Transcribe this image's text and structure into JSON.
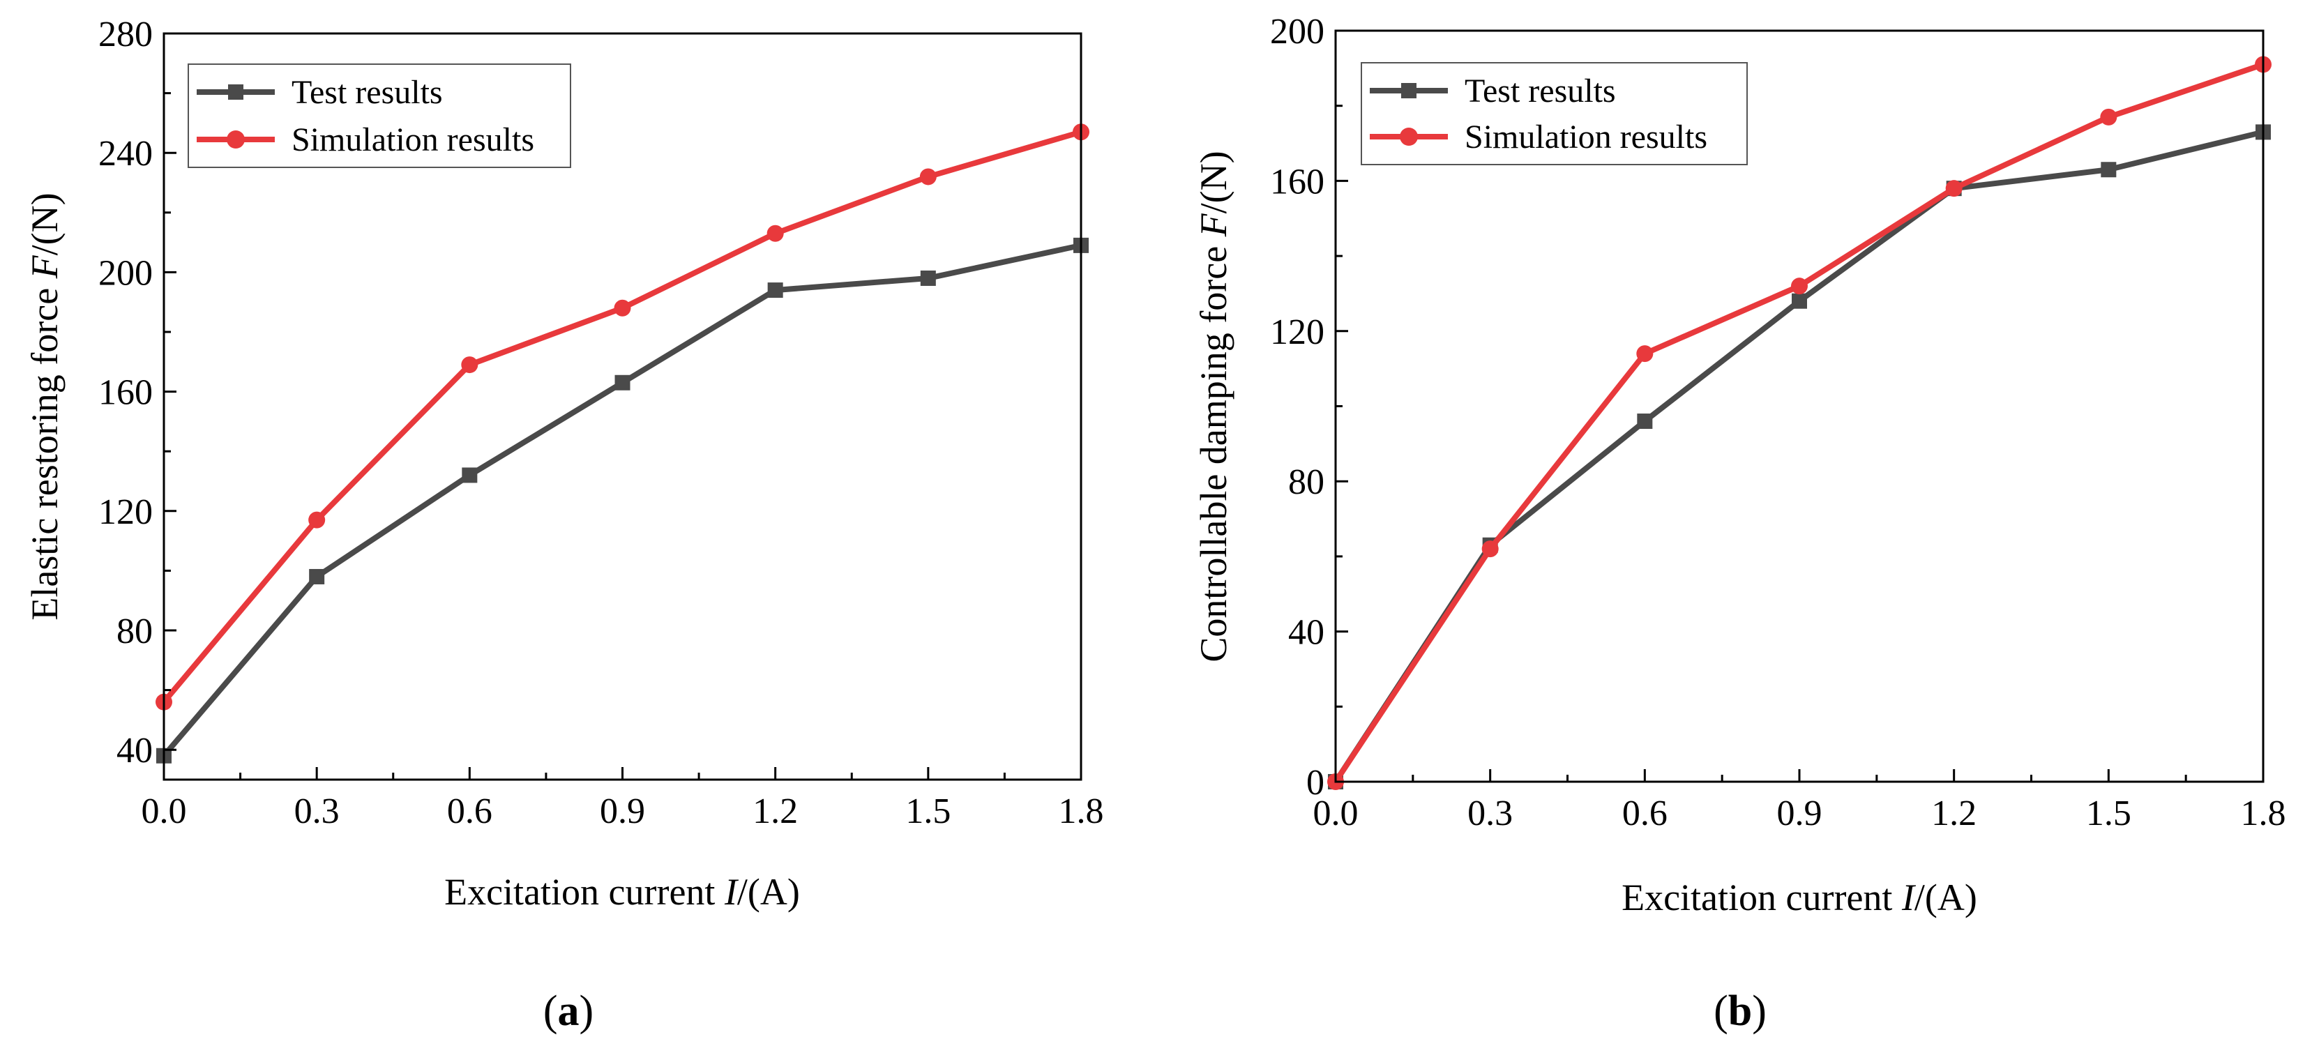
{
  "chart_data": [
    {
      "type": "line",
      "panel_label": {
        "open": "(",
        "letter": "a",
        "close": ")"
      },
      "xlabel": {
        "prefix": "Excitation current ",
        "var": "I",
        "suffix": "/(A)"
      },
      "ylabel": {
        "prefix": "Elastic restoring force ",
        "var": "F",
        "suffix": "/(N)"
      },
      "x": [
        0.0,
        0.3,
        0.6,
        0.9,
        1.2,
        1.5,
        1.8
      ],
      "xlim": [
        0.0,
        1.8
      ],
      "ylim": [
        30,
        280
      ],
      "xticks": [
        "0.0",
        "0.3",
        "0.6",
        "0.9",
        "1.2",
        "1.5",
        "1.8"
      ],
      "yticks": [
        40,
        80,
        120,
        160,
        200,
        240,
        280
      ],
      "legend_position": "top-left",
      "series": [
        {
          "name": "Test results",
          "marker": "square",
          "color": "#4a4a4a",
          "values": [
            38,
            98,
            132,
            163,
            194,
            198,
            209
          ]
        },
        {
          "name": "Simulation results",
          "marker": "circle",
          "color": "#e8393c",
          "values": [
            56,
            117,
            169,
            188,
            213,
            232,
            247
          ]
        }
      ]
    },
    {
      "type": "line",
      "panel_label": {
        "open": "(",
        "letter": "b",
        "close": ")"
      },
      "xlabel": {
        "prefix": "Excitation current ",
        "var": "I",
        "suffix": "/(A)"
      },
      "ylabel": {
        "prefix": "Controllable damping force ",
        "var": "F",
        "suffix": "/(N)"
      },
      "x": [
        0.0,
        0.3,
        0.6,
        0.9,
        1.2,
        1.5,
        1.8
      ],
      "xlim": [
        0.0,
        1.8
      ],
      "ylim": [
        0,
        200
      ],
      "xticks": [
        "0.0",
        "0.3",
        "0.6",
        "0.9",
        "1.2",
        "1.5",
        "1.8"
      ],
      "yticks": [
        0,
        40,
        80,
        120,
        160,
        200
      ],
      "legend_position": "top-left",
      "series": [
        {
          "name": "Test results",
          "marker": "square",
          "color": "#4a4a4a",
          "values": [
            0,
            63,
            96,
            128,
            158,
            163,
            173
          ]
        },
        {
          "name": "Simulation results",
          "marker": "circle",
          "color": "#e8393c",
          "values": [
            0,
            62,
            114,
            132,
            158,
            177,
            191
          ]
        }
      ]
    }
  ]
}
